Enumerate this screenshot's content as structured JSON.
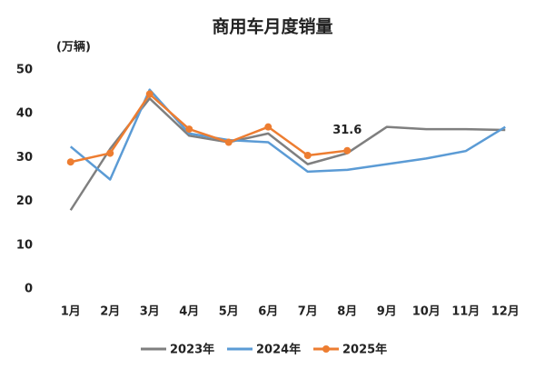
{
  "chart_data": {
    "type": "line",
    "title": "商用车月度销量",
    "y_label": "(万辆)",
    "categories": [
      "1月",
      "2月",
      "3月",
      "4月",
      "5月",
      "6月",
      "7月",
      "8月",
      "9月",
      "10月",
      "11月",
      "12月"
    ],
    "series": [
      {
        "name": "2023年",
        "color": "#7f7f7f",
        "values": [
          18,
          32,
          43.5,
          35,
          33.5,
          35.5,
          28.5,
          31,
          37,
          36.5,
          36.5,
          36.3
        ]
      },
      {
        "name": "2024年",
        "color": "#5b9bd5",
        "values": [
          32.5,
          25,
          45.5,
          35.5,
          34,
          33.5,
          26.8,
          27.2,
          28.5,
          29.8,
          31.5,
          37
        ]
      },
      {
        "name": "2025年",
        "color": "#ed7d31",
        "values": [
          29,
          31,
          44.5,
          36.5,
          33.5,
          37,
          30.5,
          31.6,
          null,
          null,
          null,
          null
        ]
      }
    ],
    "ylim": [
      0,
      50
    ],
    "yticks": [
      0,
      10,
      20,
      30,
      40,
      50
    ],
    "grid": false
  }
}
